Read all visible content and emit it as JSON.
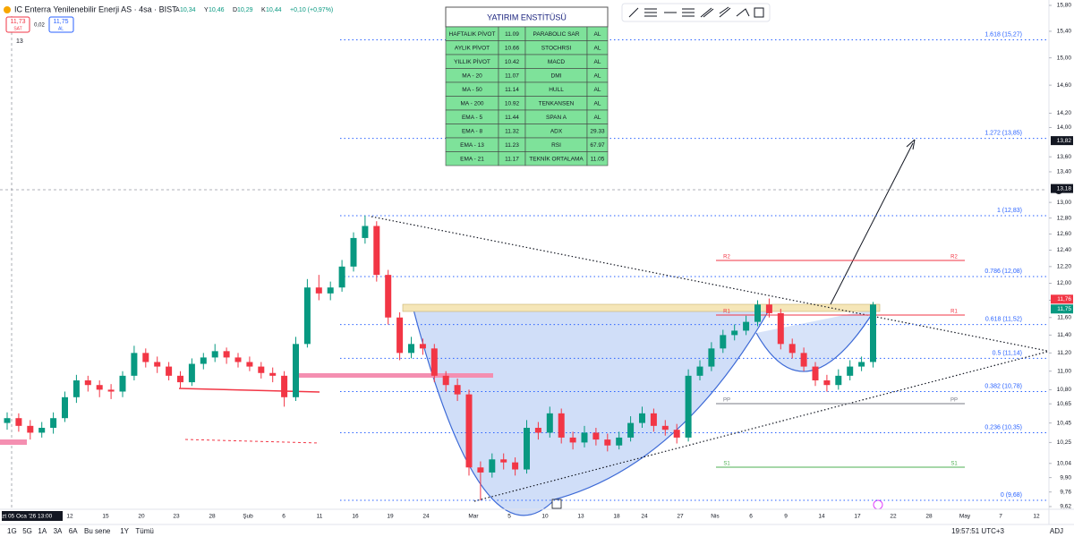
{
  "header": {
    "symbol": "IC Enterra Yenilenebilir Enerji AS · 4sa · BIST",
    "ohlc": [
      {
        "key": "A",
        "value": "10,34"
      },
      {
        "key": "Y",
        "value": "10,46"
      },
      {
        "key": "D",
        "value": "10,29"
      },
      {
        "key": "K",
        "value": "10,44"
      }
    ],
    "change": "+0,10 (+0,97%)",
    "sell": {
      "price": "11,73",
      "label": "SAT"
    },
    "spread": "0,02",
    "buy": {
      "price": "11,75",
      "label": "AL"
    },
    "indicator_count": "13"
  },
  "table": {
    "title": "YATIRIM ENSTİTÜSÜ",
    "rows": [
      [
        "HAFTALIK PİVOT",
        "11.09",
        "PARABOLIC SAR",
        "AL"
      ],
      [
        "AYLIK PİVOT",
        "10.66",
        "STOCHRSI",
        "AL"
      ],
      [
        "YILLIK PİVOT",
        "10.42",
        "MACD",
        "AL"
      ],
      [
        "MA - 20",
        "11.07",
        "DMI",
        "AL"
      ],
      [
        "MA - 50",
        "11.14",
        "HULL",
        "AL"
      ],
      [
        "MA - 200",
        "10.92",
        "TENKANSEN",
        "AL"
      ],
      [
        "EMA - 5",
        "11.44",
        "SPAN A",
        "AL"
      ],
      [
        "EMA - 8",
        "11.32",
        "ADX",
        "29.33"
      ],
      [
        "EMA - 13",
        "11.23",
        "RSI",
        "67.97"
      ],
      [
        "EMA - 21",
        "11.17",
        "TEKNİK ORTALAMA",
        "11.05"
      ]
    ]
  },
  "chart_data": {
    "type": "candlestick",
    "log_scale": true,
    "up_color": "#089981",
    "down_color": "#f23645",
    "ylim": [
      9.62,
      15.8
    ],
    "yticks": [
      {
        "value": 15.8,
        "label": "15,80"
      },
      {
        "value": 15.4,
        "label": "15,40"
      },
      {
        "value": 15,
        "label": "15,00"
      },
      {
        "value": 14.6,
        "label": "14,60"
      },
      {
        "value": 14.2,
        "label": "14,20"
      },
      {
        "value": 14,
        "label": "14,00"
      },
      {
        "value": 13.6,
        "label": "13,60"
      },
      {
        "value": 13.4,
        "label": "13,40"
      },
      {
        "value": 13,
        "label": "13,00"
      },
      {
        "value": 12.8,
        "label": "12,80"
      },
      {
        "value": 12.6,
        "label": "12,60"
      },
      {
        "value": 12.4,
        "label": "12,40"
      },
      {
        "value": 12.2,
        "label": "12,20"
      },
      {
        "value": 12,
        "label": "12,00"
      },
      {
        "value": 11.8,
        "label": "11,80"
      },
      {
        "value": 11.6,
        "label": "11,60"
      },
      {
        "value": 11.4,
        "label": "11,40"
      },
      {
        "value": 11.2,
        "label": "11,20"
      },
      {
        "value": 11,
        "label": "11,00"
      },
      {
        "value": 10.8,
        "label": "10,80"
      },
      {
        "value": 10.65,
        "label": "10,65"
      },
      {
        "value": 10.45,
        "label": "10,45"
      },
      {
        "value": 10.25,
        "label": "10,25"
      },
      {
        "value": 10.04,
        "label": "10,04"
      },
      {
        "value": 9.9,
        "label": "9,90"
      },
      {
        "value": 9.76,
        "label": "9,76"
      },
      {
        "value": 9.62,
        "label": "9,62"
      }
    ],
    "price_markers": [
      {
        "value": 13.82,
        "label": "13,82"
      },
      {
        "value": 13.18,
        "label": "13,18"
      },
      {
        "value": 11.76,
        "label": "11,76"
      },
      {
        "value": 11.75,
        "label": "11,75"
      }
    ],
    "fib_levels": [
      {
        "value": 15.27,
        "label": "1.618 (15,27)"
      },
      {
        "value": 13.85,
        "label": "1.272 (13,85)"
      },
      {
        "value": 12.83,
        "label": "1 (12,83)"
      },
      {
        "value": 12.08,
        "label": "0.786 (12,08)"
      },
      {
        "value": 11.52,
        "label": "0.618 (11,52)"
      },
      {
        "value": 11.14,
        "label": "0.5 (11,14)"
      },
      {
        "value": 10.78,
        "label": "0.382 (10,78)"
      },
      {
        "value": 10.35,
        "label": "0.236 (10,35)"
      },
      {
        "value": 9.68,
        "label": "0 (9,68)"
      }
    ],
    "pivots": [
      "R2",
      "R1",
      "PP",
      "S1"
    ],
    "x_labels": [
      "Pzt 05 Oca '26  13:00",
      "12",
      "15",
      "20",
      "23",
      "28",
      "Şub",
      "6",
      "11",
      "16",
      "19",
      "24",
      "Mar",
      "5",
      "10",
      "13",
      "18",
      "24",
      "27",
      "Nis",
      "6",
      "9",
      "14",
      "17",
      "22",
      "28",
      "May",
      "7",
      "12"
    ],
    "candles": [
      [
        10.45,
        10.56,
        10.38,
        10.5
      ],
      [
        10.5,
        10.55,
        10.36,
        10.42
      ],
      [
        10.42,
        10.48,
        10.28,
        10.35
      ],
      [
        10.35,
        10.46,
        10.3,
        10.4
      ],
      [
        10.4,
        10.56,
        10.34,
        10.5
      ],
      [
        10.5,
        10.78,
        10.46,
        10.72
      ],
      [
        10.72,
        10.96,
        10.66,
        10.9
      ],
      [
        10.9,
        10.95,
        10.78,
        10.85
      ],
      [
        10.85,
        10.9,
        10.72,
        10.8
      ],
      [
        10.8,
        10.86,
        10.7,
        10.78
      ],
      [
        10.78,
        11.0,
        10.72,
        10.95
      ],
      [
        10.95,
        11.28,
        10.9,
        11.2
      ],
      [
        11.2,
        11.25,
        11.04,
        11.1
      ],
      [
        11.1,
        11.16,
        10.98,
        11.05
      ],
      [
        11.05,
        11.1,
        10.9,
        10.95
      ],
      [
        10.95,
        11.0,
        10.82,
        10.88
      ],
      [
        10.88,
        11.14,
        10.84,
        11.08
      ],
      [
        11.08,
        11.2,
        11.02,
        11.15
      ],
      [
        11.15,
        11.3,
        11.1,
        11.22
      ],
      [
        11.22,
        11.26,
        11.08,
        11.15
      ],
      [
        11.15,
        11.2,
        11.04,
        11.1
      ],
      [
        11.1,
        11.16,
        11.0,
        11.05
      ],
      [
        11.05,
        11.1,
        10.92,
        10.98
      ],
      [
        10.98,
        11.04,
        10.88,
        10.95
      ],
      [
        10.95,
        11.0,
        10.62,
        10.72
      ],
      [
        10.72,
        11.38,
        10.68,
        11.3
      ],
      [
        11.3,
        12.05,
        11.26,
        11.95
      ],
      [
        11.95,
        12.1,
        11.8,
        11.88
      ],
      [
        11.88,
        12.02,
        11.8,
        11.95
      ],
      [
        11.95,
        12.28,
        11.9,
        12.2
      ],
      [
        12.2,
        12.62,
        12.14,
        12.55
      ],
      [
        12.55,
        12.83,
        12.48,
        12.7
      ],
      [
        12.7,
        12.76,
        12.02,
        12.1
      ],
      [
        12.1,
        12.16,
        11.52,
        11.6
      ],
      [
        11.6,
        11.66,
        11.12,
        11.2
      ],
      [
        11.2,
        11.38,
        11.14,
        11.3
      ],
      [
        11.3,
        11.36,
        11.18,
        11.25
      ],
      [
        11.25,
        11.3,
        10.88,
        10.95
      ],
      [
        10.95,
        11.0,
        10.78,
        10.85
      ],
      [
        10.85,
        10.92,
        10.68,
        10.75
      ],
      [
        10.75,
        10.8,
        9.92,
        10.0
      ],
      [
        10.0,
        10.06,
        9.68,
        9.95
      ],
      [
        9.95,
        10.14,
        9.9,
        10.08
      ],
      [
        10.08,
        10.14,
        9.98,
        10.05
      ],
      [
        10.05,
        10.1,
        9.92,
        9.98
      ],
      [
        9.98,
        10.48,
        9.94,
        10.4
      ],
      [
        10.4,
        10.46,
        10.28,
        10.35
      ],
      [
        10.35,
        10.62,
        10.3,
        10.55
      ],
      [
        10.55,
        10.6,
        10.24,
        10.3
      ],
      [
        10.3,
        10.36,
        10.18,
        10.25
      ],
      [
        10.25,
        10.42,
        10.2,
        10.35
      ],
      [
        10.35,
        10.4,
        10.22,
        10.28
      ],
      [
        10.28,
        10.34,
        10.16,
        10.22
      ],
      [
        10.22,
        10.36,
        10.18,
        10.3
      ],
      [
        10.3,
        10.52,
        10.26,
        10.45
      ],
      [
        10.45,
        10.62,
        10.4,
        10.55
      ],
      [
        10.55,
        10.6,
        10.36,
        10.42
      ],
      [
        10.42,
        10.48,
        10.32,
        10.38
      ],
      [
        10.38,
        10.44,
        10.24,
        10.3
      ],
      [
        10.3,
        11.02,
        10.26,
        10.95
      ],
      [
        10.95,
        11.12,
        10.9,
        11.05
      ],
      [
        11.05,
        11.32,
        11.0,
        11.25
      ],
      [
        11.25,
        11.46,
        11.2,
        11.4
      ],
      [
        11.4,
        11.52,
        11.34,
        11.45
      ],
      [
        11.45,
        11.62,
        11.4,
        11.55
      ],
      [
        11.55,
        11.8,
        11.5,
        11.75
      ],
      [
        11.75,
        11.82,
        11.6,
        11.65
      ],
      [
        11.65,
        11.7,
        11.24,
        11.3
      ],
      [
        11.3,
        11.36,
        11.14,
        11.2
      ],
      [
        11.2,
        11.26,
        11.0,
        11.05
      ],
      [
        11.05,
        11.1,
        10.84,
        10.9
      ],
      [
        10.9,
        10.96,
        10.78,
        10.85
      ],
      [
        10.85,
        11.02,
        10.8,
        10.95
      ],
      [
        10.95,
        11.12,
        10.9,
        11.05
      ],
      [
        11.05,
        11.16,
        11.0,
        11.1
      ],
      [
        11.1,
        11.78,
        11.04,
        11.75
      ]
    ]
  },
  "toolbar": {
    "ranges": [
      "1G",
      "5G",
      "1A",
      "3A",
      "6A",
      "Bu sene",
      "1Y",
      "Tümü"
    ],
    "clock": "19:57:51 UTC+3",
    "adj": "ADJ"
  }
}
